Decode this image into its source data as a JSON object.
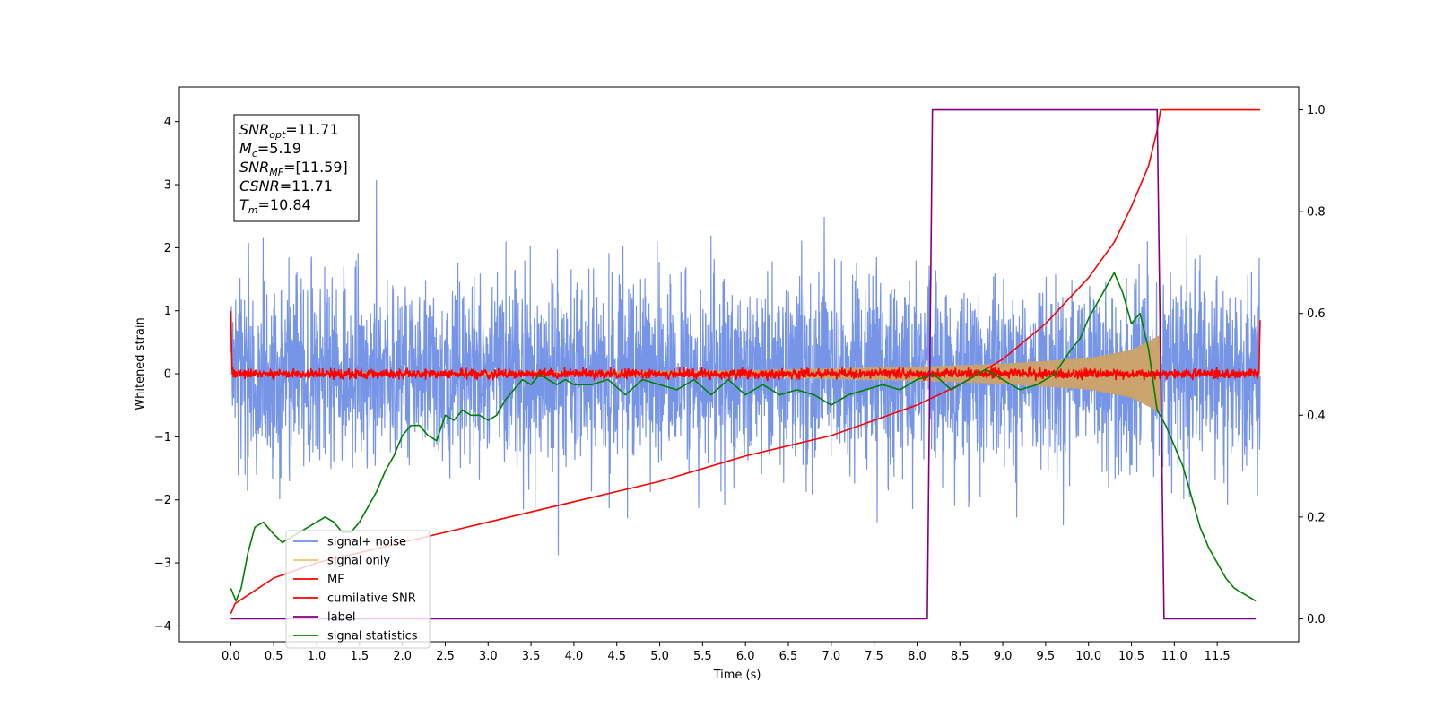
{
  "chart_data": {
    "type": "line",
    "title": "",
    "xlabel": "Time (s)",
    "ylabel": "Whitened strain",
    "ylabel_right": "",
    "xlim": [
      -0.6,
      12.45
    ],
    "ylim": [
      -4.25,
      4.55
    ],
    "ylim_right": [
      -0.045,
      1.045
    ],
    "x_ticks": [
      0.0,
      0.5,
      1.0,
      1.5,
      2.0,
      2.5,
      3.0,
      3.5,
      4.0,
      4.5,
      5.0,
      5.5,
      6.0,
      6.5,
      7.0,
      7.5,
      8.0,
      8.5,
      9.0,
      9.5,
      10.0,
      10.5,
      11.0,
      11.5
    ],
    "x_tick_labels": [
      "0.0",
      "0.5",
      "1.0",
      "1.5",
      "2.0",
      "2.5",
      "3.0",
      "3.5",
      "4.0",
      "4.5",
      "5.0",
      "5.5",
      "6.0",
      "6.5",
      "7.0",
      "7.5",
      "8.0",
      "8.5",
      "9.0",
      "9.5",
      "10.0",
      "10.5",
      "11.0",
      "11.5"
    ],
    "y_ticks": [
      -4,
      -3,
      -2,
      -1,
      0,
      1,
      2,
      3,
      4
    ],
    "y_tick_labels": [
      "−4",
      "−3",
      "−2",
      "−1",
      "0",
      "1",
      "2",
      "3",
      "4"
    ],
    "y_right_ticks": [
      0.0,
      0.2,
      0.4,
      0.6,
      0.8,
      1.0
    ],
    "y_right_tick_labels": [
      "0.0",
      "0.2",
      "0.4",
      "0.6",
      "0.8",
      "1.0"
    ],
    "grid": false,
    "legend_position": "lower-left",
    "series": [
      {
        "name": "signal+ noise",
        "color": "#6f8fe6",
        "axis": "left",
        "style": "noise",
        "x_range": [
          0.0,
          12.0
        ],
        "typical_amplitude": [
          -1.6,
          1.6
        ],
        "extreme_range": [
          -3.75,
          3.75
        ]
      },
      {
        "name": "signal only",
        "color": "#f5c36e",
        "axis": "left",
        "style": "chirp",
        "x_range": [
          0.0,
          10.84
        ],
        "envelope": [
          [
            0.0,
            0.01
          ],
          [
            6.0,
            0.05
          ],
          [
            8.0,
            0.11
          ],
          [
            9.0,
            0.16
          ],
          [
            10.0,
            0.25
          ],
          [
            10.5,
            0.38
          ],
          [
            10.84,
            0.62
          ]
        ]
      },
      {
        "name": "MF",
        "color": "#ff0000",
        "axis": "left",
        "style": "noise",
        "x_range": [
          0.0,
          12.0
        ],
        "typical_amplitude": [
          -0.1,
          0.1
        ],
        "edge_values": [
          1.0,
          0.85
        ]
      },
      {
        "name": "cumilative SNR",
        "color": "#ff0000",
        "axis": "right",
        "x": [
          0.0,
          0.05,
          0.5,
          1.0,
          2.0,
          3.0,
          4.0,
          5.0,
          6.0,
          7.0,
          7.5,
          8.0,
          8.5,
          9.0,
          9.5,
          10.0,
          10.3,
          10.5,
          10.7,
          10.8,
          10.84,
          12.0
        ],
        "y": [
          0.01,
          0.03,
          0.08,
          0.11,
          0.15,
          0.19,
          0.23,
          0.27,
          0.32,
          0.36,
          0.39,
          0.42,
          0.46,
          0.51,
          0.58,
          0.67,
          0.74,
          0.81,
          0.89,
          0.96,
          1.0,
          1.0
        ]
      },
      {
        "name": "label",
        "color": "#800080",
        "axis": "right",
        "x": [
          0.0,
          8.12,
          8.18,
          10.8,
          10.88,
          11.95
        ],
        "y": [
          0.0,
          0.0,
          1.0,
          1.0,
          0.0,
          0.0
        ]
      },
      {
        "name": "signal statistics",
        "color": "#008000",
        "axis": "right",
        "x": [
          0.0,
          0.06,
          0.12,
          0.2,
          0.28,
          0.38,
          0.48,
          0.6,
          0.7,
          0.8,
          0.9,
          1.0,
          1.1,
          1.2,
          1.3,
          1.4,
          1.5,
          1.6,
          1.7,
          1.8,
          1.9,
          2.0,
          2.1,
          2.2,
          2.3,
          2.4,
          2.5,
          2.6,
          2.7,
          2.8,
          2.9,
          3.0,
          3.1,
          3.2,
          3.3,
          3.4,
          3.5,
          3.6,
          3.7,
          3.8,
          3.9,
          4.0,
          4.2,
          4.4,
          4.6,
          4.8,
          5.0,
          5.2,
          5.4,
          5.6,
          5.8,
          6.0,
          6.2,
          6.4,
          6.6,
          6.8,
          7.0,
          7.2,
          7.4,
          7.6,
          7.8,
          8.0,
          8.2,
          8.4,
          8.6,
          8.8,
          9.0,
          9.2,
          9.4,
          9.6,
          9.8,
          9.9,
          10.0,
          10.1,
          10.2,
          10.3,
          10.4,
          10.5,
          10.6,
          10.7,
          10.8,
          10.9,
          11.0,
          11.1,
          11.2,
          11.3,
          11.4,
          11.5,
          11.6,
          11.7,
          11.8,
          11.9,
          11.95
        ],
        "y": [
          0.06,
          0.035,
          0.06,
          0.13,
          0.18,
          0.19,
          0.17,
          0.15,
          0.16,
          0.17,
          0.18,
          0.19,
          0.2,
          0.19,
          0.17,
          0.17,
          0.19,
          0.22,
          0.25,
          0.29,
          0.32,
          0.36,
          0.38,
          0.38,
          0.36,
          0.35,
          0.4,
          0.39,
          0.41,
          0.4,
          0.4,
          0.39,
          0.4,
          0.43,
          0.45,
          0.47,
          0.46,
          0.48,
          0.47,
          0.46,
          0.47,
          0.46,
          0.46,
          0.47,
          0.44,
          0.47,
          0.46,
          0.45,
          0.47,
          0.44,
          0.47,
          0.44,
          0.46,
          0.44,
          0.45,
          0.44,
          0.42,
          0.44,
          0.45,
          0.46,
          0.45,
          0.47,
          0.48,
          0.45,
          0.47,
          0.49,
          0.47,
          0.45,
          0.46,
          0.48,
          0.53,
          0.55,
          0.59,
          0.62,
          0.65,
          0.68,
          0.64,
          0.58,
          0.6,
          0.53,
          0.41,
          0.38,
          0.34,
          0.3,
          0.24,
          0.18,
          0.14,
          0.11,
          0.08,
          0.06,
          0.05,
          0.04,
          0.035
        ]
      }
    ],
    "annotations": [
      {
        "base": "SNR",
        "sub": "opt",
        "value": "=11.71"
      },
      {
        "base": "M",
        "sub": "c",
        "value": "=5.19"
      },
      {
        "base": "SNR",
        "sub": "MF",
        "value": "=[11.59]"
      },
      {
        "base": "CSNR",
        "sub": "",
        "value": "=11.71"
      },
      {
        "base": "T",
        "sub": "m",
        "value": "=10.84"
      }
    ]
  }
}
